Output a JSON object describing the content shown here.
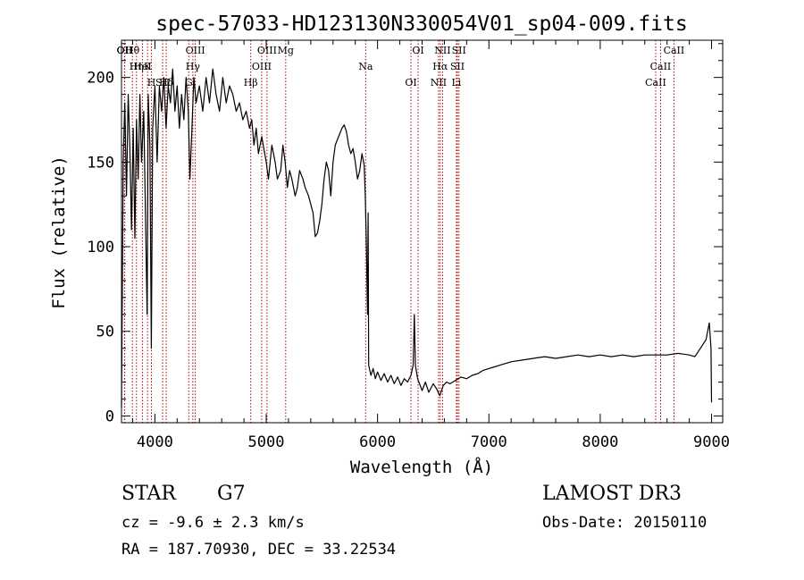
{
  "chart_data": {
    "type": "line",
    "title": "spec-57033-HD123130N330054V01_sp04-009.fits",
    "xlabel": "Wavelength (Å)",
    "ylabel": "Flux (relative)",
    "xlim": [
      3700,
      9100
    ],
    "ylim": [
      -4,
      222
    ],
    "x_ticks": [
      4000,
      5000,
      6000,
      7000,
      8000,
      9000
    ],
    "y_ticks": [
      0,
      50,
      100,
      150,
      200
    ],
    "series": [
      {
        "name": "",
        "color": "#000000",
        "points": [
          [
            3700,
            5
          ],
          [
            3715,
            150
          ],
          [
            3730,
            185
          ],
          [
            3745,
            130
          ],
          [
            3760,
            190
          ],
          [
            3775,
            160
          ],
          [
            3790,
            110
          ],
          [
            3805,
            170
          ],
          [
            3820,
            105
          ],
          [
            3835,
            175
          ],
          [
            3850,
            140
          ],
          [
            3865,
            190
          ],
          [
            3880,
            150
          ],
          [
            3900,
            180
          ],
          [
            3915,
            120
          ],
          [
            3930,
            60
          ],
          [
            3940,
            190
          ],
          [
            3955,
            160
          ],
          [
            3968,
            40
          ],
          [
            3980,
            170
          ],
          [
            4000,
            195
          ],
          [
            4020,
            150
          ],
          [
            4040,
            195
          ],
          [
            4060,
            180
          ],
          [
            4080,
            200
          ],
          [
            4100,
            170
          ],
          [
            4120,
            195
          ],
          [
            4140,
            185
          ],
          [
            4160,
            205
          ],
          [
            4180,
            180
          ],
          [
            4200,
            195
          ],
          [
            4220,
            170
          ],
          [
            4240,
            190
          ],
          [
            4260,
            175
          ],
          [
            4280,
            200
          ],
          [
            4300,
            180
          ],
          [
            4315,
            140
          ],
          [
            4330,
            165
          ],
          [
            4350,
            200
          ],
          [
            4370,
            185
          ],
          [
            4400,
            195
          ],
          [
            4430,
            180
          ],
          [
            4460,
            200
          ],
          [
            4490,
            185
          ],
          [
            4520,
            205
          ],
          [
            4550,
            190
          ],
          [
            4580,
            180
          ],
          [
            4610,
            200
          ],
          [
            4640,
            185
          ],
          [
            4670,
            195
          ],
          [
            4700,
            190
          ],
          [
            4730,
            180
          ],
          [
            4760,
            185
          ],
          [
            4790,
            175
          ],
          [
            4820,
            180
          ],
          [
            4850,
            170
          ],
          [
            4870,
            175
          ],
          [
            4890,
            160
          ],
          [
            4910,
            170
          ],
          [
            4930,
            155
          ],
          [
            4960,
            165
          ],
          [
            5000,
            150
          ],
          [
            5020,
            140
          ],
          [
            5050,
            160
          ],
          [
            5080,
            150
          ],
          [
            5100,
            140
          ],
          [
            5130,
            145
          ],
          [
            5150,
            160
          ],
          [
            5170,
            150
          ],
          [
            5190,
            135
          ],
          [
            5210,
            145
          ],
          [
            5230,
            140
          ],
          [
            5260,
            130
          ],
          [
            5280,
            135
          ],
          [
            5300,
            145
          ],
          [
            5330,
            140
          ],
          [
            5350,
            135
          ],
          [
            5380,
            130
          ],
          [
            5400,
            125
          ],
          [
            5420,
            120
          ],
          [
            5440,
            106
          ],
          [
            5460,
            108
          ],
          [
            5480,
            115
          ],
          [
            5500,
            125
          ],
          [
            5520,
            140
          ],
          [
            5540,
            150
          ],
          [
            5560,
            145
          ],
          [
            5580,
            130
          ],
          [
            5600,
            150
          ],
          [
            5620,
            160
          ],
          [
            5650,
            165
          ],
          [
            5680,
            170
          ],
          [
            5700,
            172
          ],
          [
            5720,
            168
          ],
          [
            5740,
            160
          ],
          [
            5760,
            155
          ],
          [
            5780,
            158
          ],
          [
            5800,
            150
          ],
          [
            5820,
            140
          ],
          [
            5840,
            145
          ],
          [
            5860,
            155
          ],
          [
            5880,
            148
          ],
          [
            5890,
            130
          ],
          [
            5900,
            100
          ],
          [
            5910,
            60
          ],
          [
            5915,
            120
          ],
          [
            5920,
            30
          ],
          [
            5940,
            24
          ],
          [
            5960,
            28
          ],
          [
            5980,
            22
          ],
          [
            6000,
            26
          ],
          [
            6030,
            21
          ],
          [
            6060,
            25
          ],
          [
            6090,
            20
          ],
          [
            6120,
            24
          ],
          [
            6150,
            19
          ],
          [
            6180,
            23
          ],
          [
            6210,
            18
          ],
          [
            6240,
            22
          ],
          [
            6270,
            20
          ],
          [
            6300,
            24
          ],
          [
            6320,
            30
          ],
          [
            6330,
            60
          ],
          [
            6340,
            30
          ],
          [
            6360,
            22
          ],
          [
            6400,
            15
          ],
          [
            6430,
            20
          ],
          [
            6460,
            14
          ],
          [
            6500,
            19
          ],
          [
            6530,
            16
          ],
          [
            6560,
            12
          ],
          [
            6590,
            18
          ],
          [
            6620,
            20
          ],
          [
            6650,
            19
          ],
          [
            6700,
            21
          ],
          [
            6750,
            23
          ],
          [
            6800,
            22
          ],
          [
            6850,
            24
          ],
          [
            6900,
            25
          ],
          [
            6950,
            27
          ],
          [
            7000,
            28
          ],
          [
            7050,
            29
          ],
          [
            7100,
            30
          ],
          [
            7150,
            31
          ],
          [
            7200,
            32
          ],
          [
            7300,
            33
          ],
          [
            7400,
            34
          ],
          [
            7500,
            35
          ],
          [
            7600,
            34
          ],
          [
            7700,
            35
          ],
          [
            7800,
            36
          ],
          [
            7900,
            35
          ],
          [
            8000,
            36
          ],
          [
            8100,
            35
          ],
          [
            8200,
            36
          ],
          [
            8300,
            35
          ],
          [
            8400,
            36
          ],
          [
            8500,
            36
          ],
          [
            8600,
            36
          ],
          [
            8700,
            37
          ],
          [
            8800,
            36
          ],
          [
            8850,
            35
          ],
          [
            8900,
            40
          ],
          [
            8950,
            45
          ],
          [
            8980,
            55
          ],
          [
            8995,
            40
          ],
          [
            9000,
            8
          ]
        ]
      }
    ],
    "lines": [
      {
        "label": "Hθ",
        "wl": 3798
      },
      {
        "label": "K",
        "wl": 3934
      },
      {
        "label": "Hδ",
        "wl": 4102
      },
      {
        "label": "OII",
        "wl": 3727
      },
      {
        "label": "HeI",
        "wl": 3889
      },
      {
        "label": "SII",
        "wl": 4070
      },
      {
        "label": "OII",
        "wl": 3729
      },
      {
        "label": "Hη",
        "wl": 3835
      },
      {
        "label": "H",
        "wl": 3969
      },
      {
        "label": "OIII",
        "wl": 4363
      },
      {
        "label": "Hγ",
        "wl": 4341
      },
      {
        "label": "G",
        "wl": 4304
      },
      {
        "label": "OIII",
        "wl": 5007
      },
      {
        "label": "OIII",
        "wl": 4959
      },
      {
        "label": "Hβ",
        "wl": 4861
      },
      {
        "label": "Mg",
        "wl": 5175
      },
      {
        "label": "Na",
        "wl": 5893
      },
      {
        "label": "OI",
        "wl": 6300
      },
      {
        "label": "OI",
        "wl": 6364
      },
      {
        "label": "Hα",
        "wl": 6563
      },
      {
        "label": "NII",
        "wl": 6548
      },
      {
        "label": "NII",
        "wl": 6584
      },
      {
        "label": "SII",
        "wl": 6717
      },
      {
        "label": "Li",
        "wl": 6708
      },
      {
        "label": "SII",
        "wl": 6731
      },
      {
        "label": "CaII",
        "wl": 8542
      },
      {
        "label": "CaII",
        "wl": 8498
      },
      {
        "label": "CaII",
        "wl": 8662
      }
    ]
  },
  "info": {
    "object_class": "STAR",
    "subclass": "G7",
    "cz": "cz = -9.6 ± 2.3 km/s",
    "coords": "RA = 187.70930, DEC =  33.22534",
    "survey": "LAMOST DR3",
    "obs_date": "Obs-Date: 20150110"
  }
}
